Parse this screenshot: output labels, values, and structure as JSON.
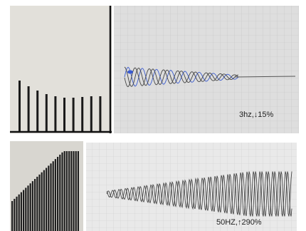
{
  "panels": [
    {
      "label": "3hz,↓15%"
    },
    {
      "label": "50HZ,↑290%"
    }
  ]
}
